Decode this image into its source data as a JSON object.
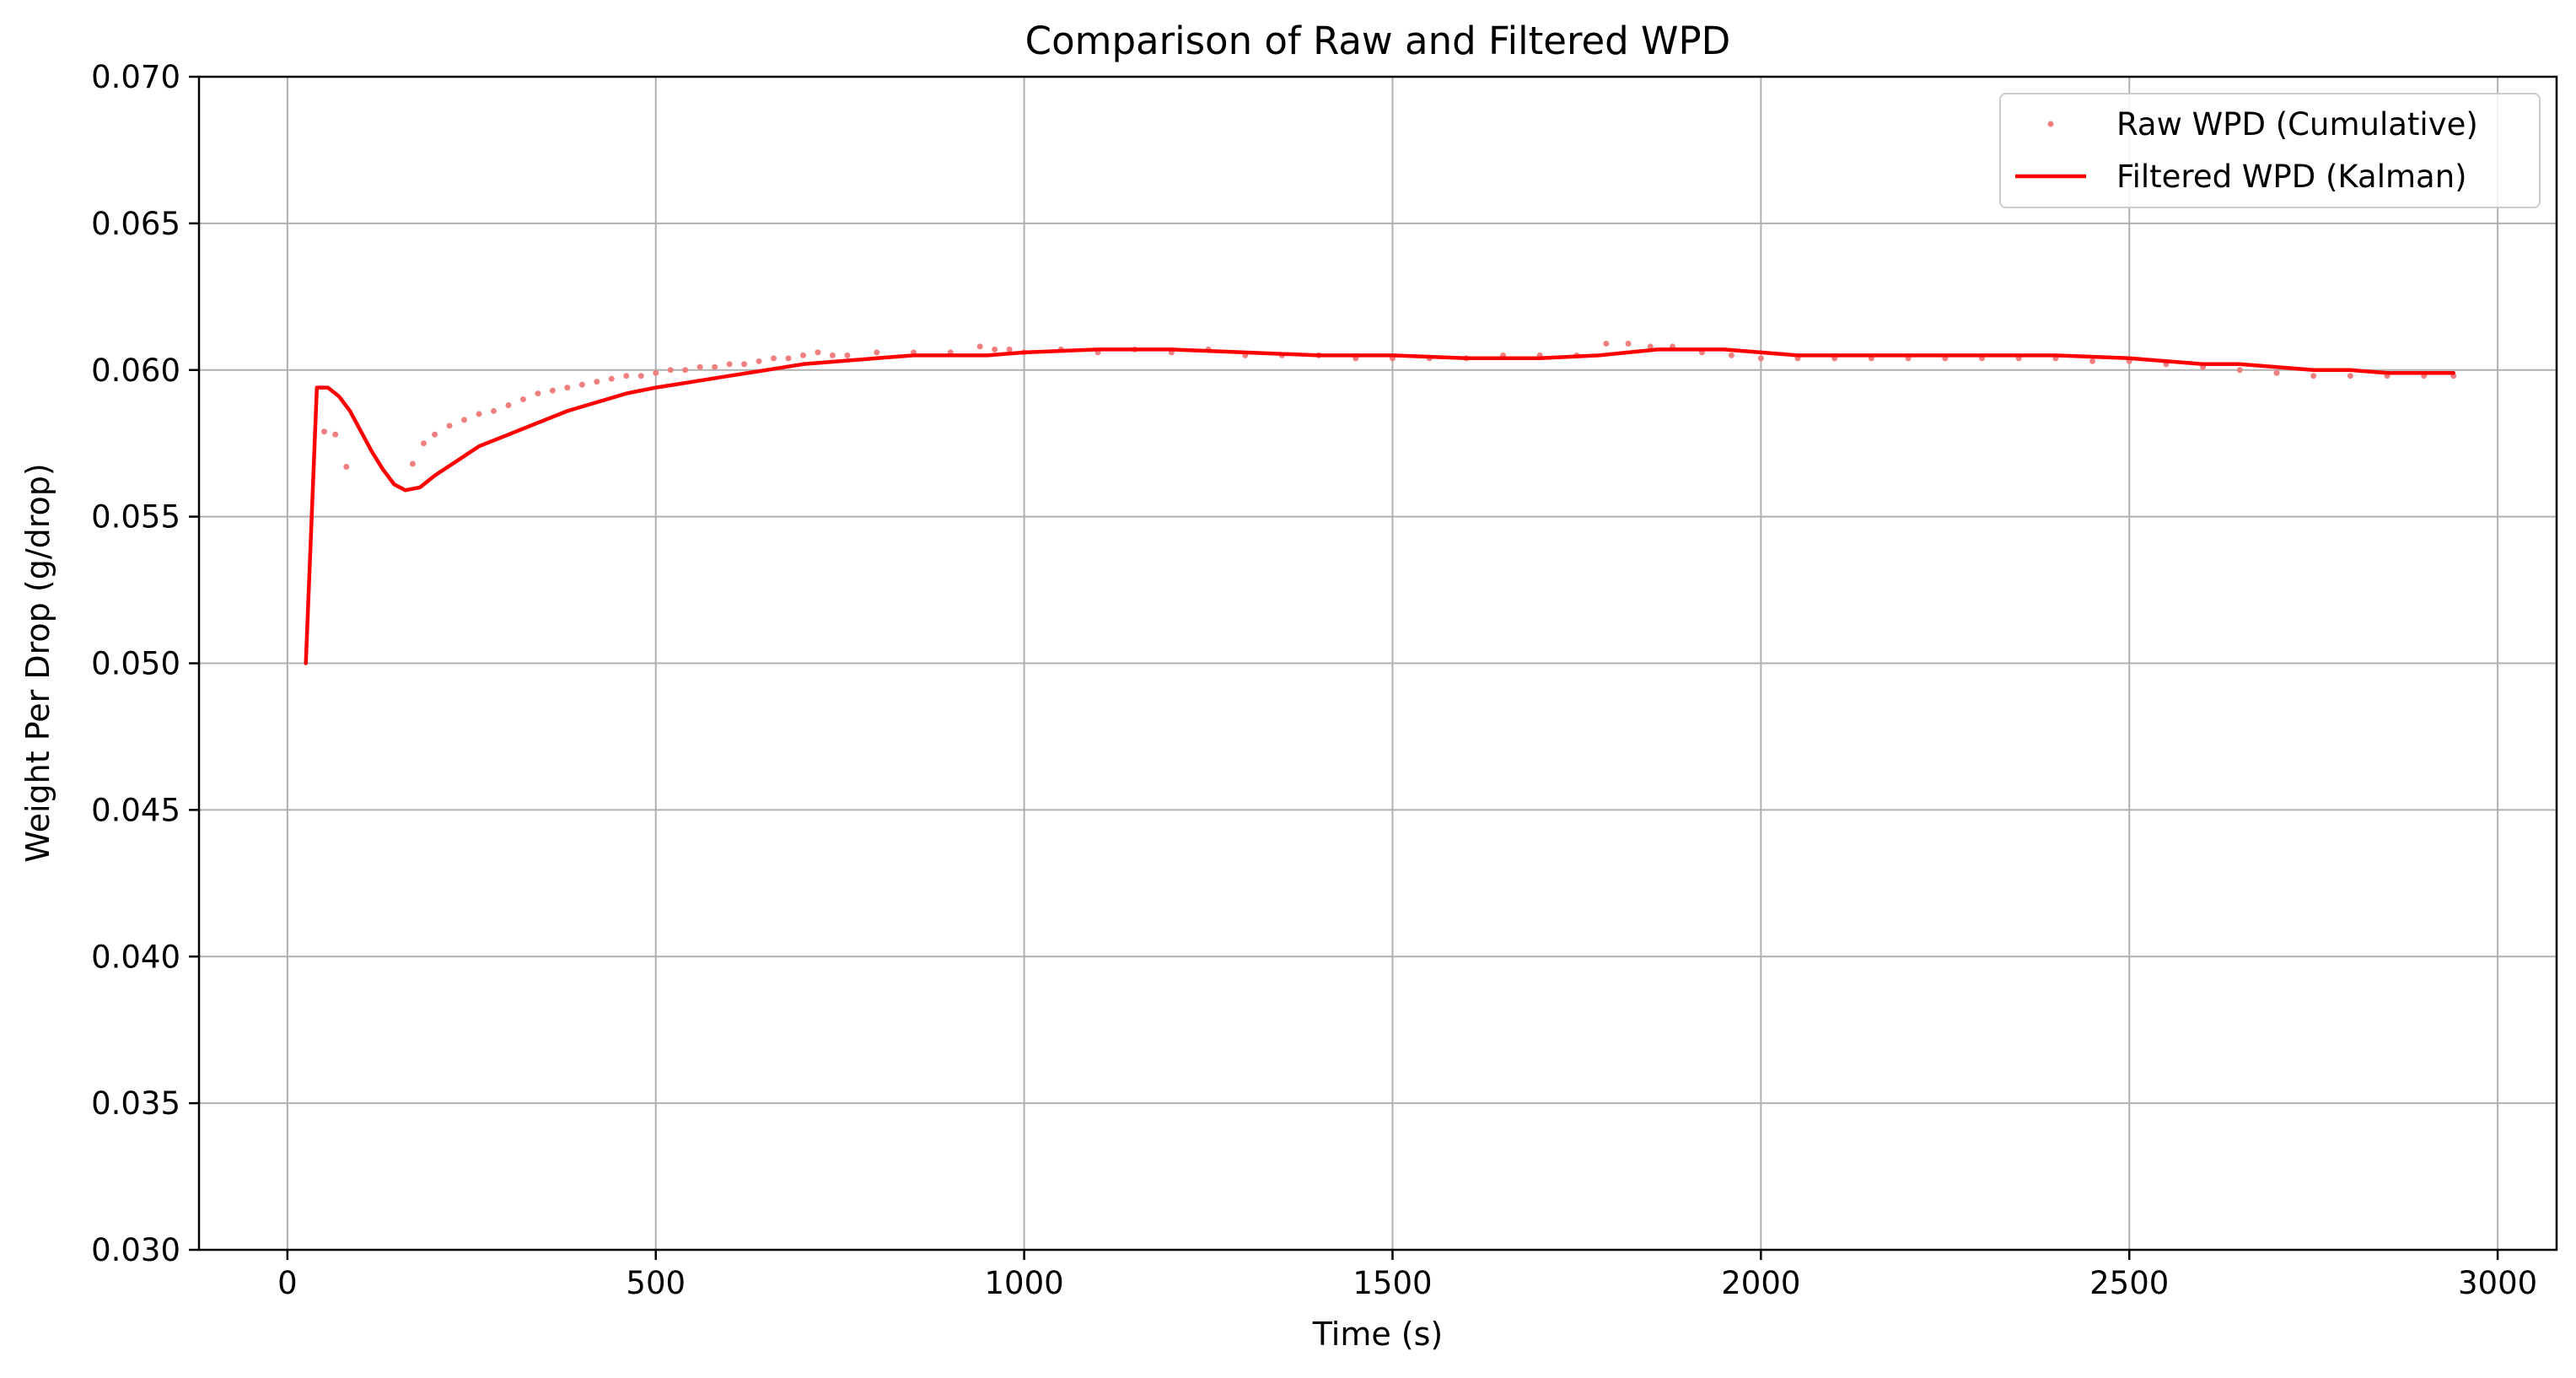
{
  "chart_data": {
    "type": "line",
    "title": "Comparison of Raw and Filtered WPD",
    "xlabel": "Time (s)",
    "ylabel": "Weight Per Drop (g/drop)",
    "xlim": [
      -120,
      3080
    ],
    "ylim": [
      0.03,
      0.07
    ],
    "xticks": [
      0,
      500,
      1000,
      1500,
      2000,
      2500,
      3000
    ],
    "yticks": [
      0.03,
      0.035,
      0.04,
      0.045,
      0.05,
      0.055,
      0.06,
      0.065,
      0.07
    ],
    "xtick_labels": [
      "0",
      "500",
      "1000",
      "1500",
      "2000",
      "2500",
      "3000"
    ],
    "ytick_labels": [
      "0.030",
      "0.035",
      "0.040",
      "0.045",
      "0.050",
      "0.055",
      "0.060",
      "0.065",
      "0.070"
    ],
    "grid": true,
    "legend_position": "top-right",
    "colors": {
      "raw": "#f08080",
      "filtered": "#ff0000",
      "grid": "#b0b0b0",
      "legend_border": "#cccccc"
    },
    "series": [
      {
        "name": "Raw WPD (Cumulative)",
        "style": "points",
        "x": [
          50,
          65,
          80,
          170,
          185,
          200,
          220,
          240,
          260,
          280,
          300,
          320,
          340,
          360,
          380,
          400,
          420,
          440,
          460,
          480,
          500,
          520,
          540,
          560,
          580,
          600,
          620,
          640,
          660,
          680,
          700,
          720,
          740,
          760,
          800,
          850,
          900,
          940,
          960,
          980,
          1000,
          1050,
          1100,
          1150,
          1200,
          1250,
          1300,
          1350,
          1400,
          1450,
          1500,
          1550,
          1600,
          1650,
          1700,
          1750,
          1790,
          1820,
          1850,
          1880,
          1920,
          1960,
          2000,
          2050,
          2100,
          2150,
          2200,
          2250,
          2300,
          2350,
          2400,
          2450,
          2500,
          2550,
          2600,
          2650,
          2700,
          2750,
          2800,
          2850,
          2900,
          2940
        ],
        "y": [
          0.0579,
          0.0578,
          0.0567,
          0.0568,
          0.0575,
          0.0578,
          0.0581,
          0.0583,
          0.0585,
          0.0586,
          0.0588,
          0.059,
          0.0592,
          0.0593,
          0.0594,
          0.0595,
          0.0596,
          0.0597,
          0.0598,
          0.0598,
          0.0599,
          0.06,
          0.06,
          0.0601,
          0.0601,
          0.0602,
          0.0602,
          0.0603,
          0.0604,
          0.0604,
          0.0605,
          0.0606,
          0.0605,
          0.0605,
          0.0606,
          0.0606,
          0.0606,
          0.0608,
          0.0607,
          0.0607,
          0.0606,
          0.0607,
          0.0606,
          0.0607,
          0.0606,
          0.0607,
          0.0605,
          0.0605,
          0.0605,
          0.0604,
          0.0604,
          0.0604,
          0.0604,
          0.0605,
          0.0605,
          0.0605,
          0.0609,
          0.0609,
          0.0608,
          0.0608,
          0.0606,
          0.0605,
          0.0604,
          0.0604,
          0.0604,
          0.0604,
          0.0604,
          0.0604,
          0.0604,
          0.0604,
          0.0604,
          0.0603,
          0.0603,
          0.0602,
          0.0601,
          0.06,
          0.0599,
          0.0598,
          0.0598,
          0.0598,
          0.0598,
          0.0598
        ]
      },
      {
        "name": "Filtered WPD (Kalman)",
        "style": "line",
        "x": [
          25,
          40,
          55,
          70,
          85,
          100,
          115,
          130,
          145,
          160,
          180,
          200,
          230,
          260,
          300,
          340,
          380,
          420,
          460,
          500,
          550,
          600,
          650,
          700,
          750,
          800,
          850,
          900,
          950,
          1000,
          1100,
          1200,
          1300,
          1400,
          1500,
          1600,
          1700,
          1780,
          1820,
          1860,
          1900,
          1950,
          2000,
          2050,
          2100,
          2200,
          2300,
          2400,
          2500,
          2550,
          2600,
          2650,
          2700,
          2750,
          2800,
          2850,
          2900,
          2940
        ],
        "y": [
          0.05,
          0.0594,
          0.0594,
          0.0591,
          0.0586,
          0.0579,
          0.0572,
          0.0566,
          0.0561,
          0.0559,
          0.056,
          0.0564,
          0.0569,
          0.0574,
          0.0578,
          0.0582,
          0.0586,
          0.0589,
          0.0592,
          0.0594,
          0.0596,
          0.0598,
          0.06,
          0.0602,
          0.0603,
          0.0604,
          0.0605,
          0.0605,
          0.0605,
          0.0606,
          0.0607,
          0.0607,
          0.0606,
          0.0605,
          0.0605,
          0.0604,
          0.0604,
          0.0605,
          0.0606,
          0.0607,
          0.0607,
          0.0607,
          0.0606,
          0.0605,
          0.0605,
          0.0605,
          0.0605,
          0.0605,
          0.0604,
          0.0603,
          0.0602,
          0.0602,
          0.0601,
          0.06,
          0.06,
          0.0599,
          0.0599,
          0.0599
        ]
      }
    ]
  }
}
